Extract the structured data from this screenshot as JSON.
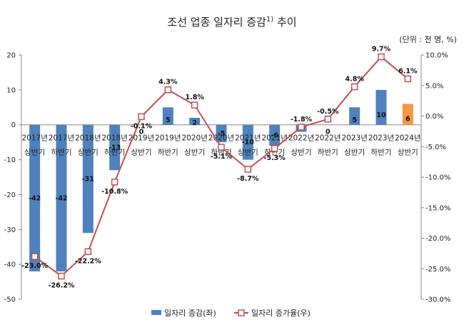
{
  "chart_data": {
    "type": "bar+line",
    "title": "조선 업종 일자리 증감",
    "title_superscript": "1)",
    "title_suffix": "추이",
    "unit": "(단위 : 천 명, %)",
    "categories": [
      [
        "2017년",
        "상반기"
      ],
      [
        "2017년",
        "하반기"
      ],
      [
        "2018년",
        "상반기"
      ],
      [
        "2018년",
        "하반기"
      ],
      [
        "2019년",
        "상반기"
      ],
      [
        "2019년",
        "하반기"
      ],
      [
        "2020년",
        "상반기"
      ],
      [
        "2020년",
        "하반기"
      ],
      [
        "2021년",
        "상반기"
      ],
      [
        "2021년",
        "하반기"
      ],
      [
        "2022년",
        "상반기"
      ],
      [
        "2022년",
        "하반기"
      ],
      [
        "2023년",
        "상반기"
      ],
      [
        "2023년",
        "하반기"
      ],
      [
        "2024년",
        "상반기"
      ]
    ],
    "bars": {
      "name": "일자리 증감(좌)",
      "values": [
        -42,
        -42,
        -31,
        -13,
        0,
        5,
        2,
        -5,
        -10,
        -6,
        -2,
        0,
        5,
        10,
        6
      ],
      "labels": [
        "-42",
        "-42",
        "-31",
        "-13",
        "0",
        "5",
        "2",
        "-5",
        "-10",
        "-6",
        "-2",
        "0",
        "5",
        "10",
        "6"
      ],
      "color": "#4f81bd",
      "highlight_color": "#f79646",
      "highlight_label_color": "#ffffff"
    },
    "line": {
      "name": "일자리 증가율(우)",
      "values": [
        -23.0,
        -26.2,
        -22.2,
        -10.8,
        -0.1,
        4.3,
        1.8,
        -5.1,
        -8.7,
        -5.3,
        -1.8,
        -0.5,
        4.8,
        9.7,
        6.1
      ],
      "labels": [
        "-23.0%",
        "-26.2%",
        "-22.2%",
        "-10.8%",
        "-0.1%",
        "4.3%",
        "1.8%",
        "-5.1%",
        "-8.7%",
        "-5.3%",
        "-1.8%",
        "-0.5%",
        "4.8%",
        "9.7%",
        "6.1%"
      ],
      "color": "#c0504d",
      "highlight_label_color": "#c0504d"
    },
    "y_left": {
      "min": -50,
      "max": 20,
      "ticks": [
        20,
        10,
        0,
        -10,
        -20,
        -30,
        -40,
        -50
      ]
    },
    "y_right": {
      "min": -30,
      "max": 10,
      "ticks": [
        10,
        5,
        0,
        -5,
        -10,
        -15,
        -20,
        -25,
        -30
      ],
      "tick_labels": [
        "10.0%",
        "5.0%",
        "0.0%",
        "-5.0%",
        "-10.0%",
        "-15.0%",
        "-20.0%",
        "-25.0%",
        "-30.0%"
      ]
    },
    "legend_position": "bottom-center",
    "grid": false
  }
}
